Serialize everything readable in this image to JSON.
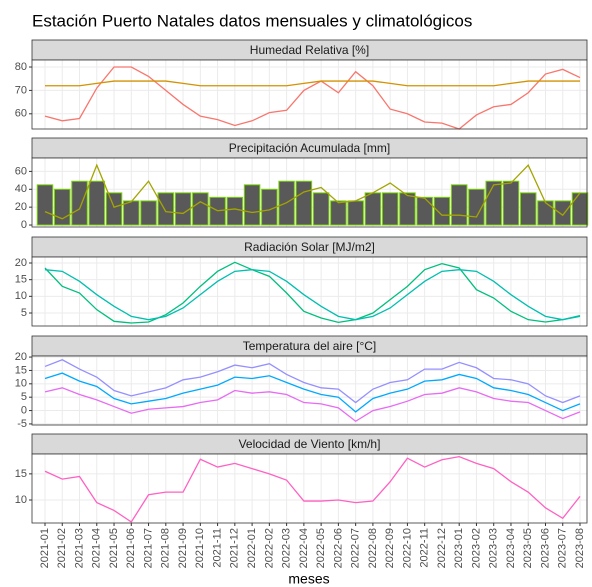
{
  "title": "Estación Puerto Natales datos mensuales y climatológicos",
  "x_label": "meses",
  "categories": [
    "2021-01",
    "2021-02",
    "2021-03",
    "2021-04",
    "2021-05",
    "2021-06",
    "2021-07",
    "2021-08",
    "2021-09",
    "2021-10",
    "2021-11",
    "2021-12",
    "2022-01",
    "2022-02",
    "2022-03",
    "2022-04",
    "2022-05",
    "2022-06",
    "2022-07",
    "2022-08",
    "2022-09",
    "2022-10",
    "2022-11",
    "2022-12",
    "2023-01",
    "2023-02",
    "2023-03",
    "2023-04",
    "2023-05",
    "2023-06",
    "2023-07",
    "2023-08"
  ],
  "chart_data": [
    {
      "type": "line",
      "title": "Humedad Relativa [%]",
      "ylim": [
        53.5,
        83
      ],
      "yticks": [
        60,
        70,
        80
      ],
      "grid": true,
      "series": [
        {
          "color": "#f8766d",
          "values": [
            59,
            57,
            58,
            71,
            80,
            80,
            76,
            70,
            64,
            59,
            57.5,
            55,
            57,
            60.5,
            61.5,
            70,
            74,
            69,
            78,
            72,
            62,
            60,
            56.5,
            56,
            53.5,
            59.5,
            63,
            64,
            69,
            77,
            79,
            75.5
          ]
        },
        {
          "color": "#d39200",
          "values": [
            72,
            72,
            72,
            73,
            74,
            74,
            74,
            74,
            73,
            72,
            72,
            72,
            72,
            72,
            72,
            73,
            74,
            74,
            74,
            74,
            73,
            72,
            72,
            72,
            72,
            72,
            72,
            73,
            74,
            74,
            74,
            74
          ]
        }
      ]
    },
    {
      "type": "combo",
      "title": "Precipitación Acumulada [mm]",
      "ylim": [
        -2.2,
        75
      ],
      "yticks": [
        0,
        20,
        40,
        60
      ],
      "grid": true,
      "series": [
        {
          "type": "bar",
          "color": "#595959",
          "border": "#7cd40b",
          "values": [
            45,
            40,
            49,
            49,
            36,
            27,
            27,
            36,
            36,
            36,
            31,
            31,
            45,
            40,
            49,
            49,
            36,
            27,
            27,
            36,
            36,
            36,
            31,
            31,
            45,
            40,
            49,
            49,
            36,
            27,
            27,
            36
          ]
        },
        {
          "type": "line",
          "color": "#a3a500",
          "values": [
            15,
            7,
            18,
            67,
            20,
            26,
            49,
            15,
            13,
            26,
            16,
            18,
            14,
            17,
            25,
            37,
            42,
            25,
            27,
            36,
            47,
            33,
            30,
            11,
            11,
            9,
            45,
            47,
            67,
            25,
            11,
            36
          ]
        }
      ]
    },
    {
      "type": "line",
      "title": "Radiación Solar [MJ/m2]",
      "ylim": [
        1.1,
        21.8
      ],
      "yticks": [
        5,
        10,
        15,
        20
      ],
      "grid": true,
      "series": [
        {
          "color": "#00bf7d",
          "values": [
            18.5,
            13,
            11,
            6,
            2.5,
            2,
            2.3,
            4.5,
            8,
            13,
            17.5,
            20.2,
            18,
            16,
            11,
            5.5,
            3.5,
            2.2,
            3,
            5,
            9,
            13,
            18,
            19.8,
            18.5,
            12,
            9.5,
            5.5,
            3,
            2.3,
            3,
            4.2
          ]
        },
        {
          "color": "#00bfb0",
          "values": [
            18,
            17.5,
            14.5,
            10.5,
            7,
            4,
            3,
            4,
            6.5,
            10.5,
            14.5,
            17.5,
            18,
            17.5,
            14.5,
            10.5,
            7,
            4,
            3,
            4,
            6.5,
            10.5,
            14.5,
            17.5,
            18,
            17.5,
            14.5,
            10.5,
            7,
            4,
            3,
            4
          ]
        }
      ]
    },
    {
      "type": "line",
      "title": "Temperatura del aire [°C]",
      "ylim": [
        -5.4,
        20.4
      ],
      "yticks": [
        -5,
        0,
        5,
        10,
        15,
        20
      ],
      "grid": true,
      "series": [
        {
          "color": "#9590ff",
          "values": [
            16.5,
            19,
            15.5,
            12.5,
            7.5,
            5.5,
            7,
            8.5,
            11.5,
            12.5,
            14.5,
            17,
            16,
            17.5,
            13.5,
            10.5,
            8.5,
            8,
            3,
            8,
            10.5,
            11.5,
            15.5,
            15.5,
            18,
            16,
            12,
            11.5,
            10,
            5.5,
            3,
            5.5
          ]
        },
        {
          "color": "#00a9ff",
          "values": [
            12,
            14,
            11,
            9,
            4.5,
            2.5,
            3.5,
            4.5,
            6.5,
            8,
            9.5,
            12.5,
            12,
            13,
            10.5,
            8,
            6,
            5,
            -0.5,
            4.5,
            6.5,
            8,
            11,
            11.5,
            13.5,
            12,
            8.5,
            7.5,
            6,
            3,
            0,
            2.5
          ]
        },
        {
          "color": "#e76bf3",
          "values": [
            7,
            8.5,
            6,
            4,
            1.5,
            -1,
            0.5,
            1,
            1.5,
            3,
            4,
            7.5,
            6.5,
            7,
            6,
            3,
            2.5,
            1,
            -4,
            0,
            1.5,
            3.5,
            6,
            6.5,
            8.5,
            7,
            4.5,
            3.5,
            3,
            0,
            -3,
            -0.5
          ]
        }
      ]
    },
    {
      "type": "line",
      "title": "Velocidad de Viento [km/h]",
      "ylim": [
        5.6,
        18.8
      ],
      "yticks": [
        10,
        15
      ],
      "grid": true,
      "series": [
        {
          "color": "#ff61c3",
          "values": [
            15.5,
            14,
            14.5,
            9.5,
            8,
            5.8,
            11,
            11.5,
            11.5,
            17.8,
            16.3,
            17,
            16,
            15,
            13.8,
            9.8,
            9.8,
            10,
            9.5,
            9.8,
            13.5,
            18,
            16.3,
            17.7,
            18.3,
            17,
            16,
            13.5,
            11.5,
            8.5,
            6.5,
            10.7
          ]
        }
      ]
    }
  ]
}
